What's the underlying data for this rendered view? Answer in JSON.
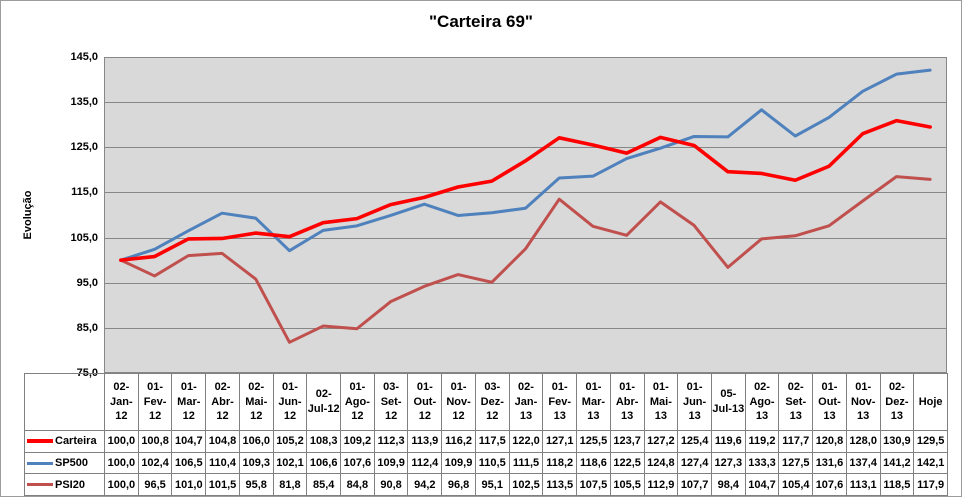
{
  "chart_data": {
    "type": "line",
    "title": "\"Carteira 69\"",
    "ylabel": "Evolução",
    "ylim": [
      75,
      145
    ],
    "ytick_step": 10,
    "decimal_separator": ",",
    "grid": "horizontal",
    "legend_position": "data-table-left",
    "categories": [
      "02-Jan-12",
      "01-Fev-12",
      "01-Mar-12",
      "02-Abr-12",
      "02-Mai-12",
      "01-Jun-12",
      "02-Jul-12",
      "01-Ago-12",
      "03-Set-12",
      "01-Out-12",
      "01-Nov-12",
      "03-Dez-12",
      "02-Jan-13",
      "01-Fev-13",
      "01-Mar-13",
      "01-Abr-13",
      "01-Mai-13",
      "01-Jun-13",
      "05-Jul-13",
      "02-Ago-13",
      "02-Set-13",
      "01-Out-13",
      "01-Nov-13",
      "02-Dez-13",
      "Hoje"
    ],
    "series": [
      {
        "name": "Carteira",
        "color": "#FF0000",
        "line_width": 3.6,
        "values": [
          100.0,
          100.8,
          104.7,
          104.8,
          106.0,
          105.2,
          108.3,
          109.2,
          112.3,
          113.9,
          116.2,
          117.5,
          122.0,
          127.1,
          125.5,
          123.7,
          127.2,
          125.4,
          119.6,
          119.2,
          117.7,
          120.8,
          128.0,
          130.9,
          129.5
        ]
      },
      {
        "name": "SP500",
        "color": "#4F81BD",
        "line_width": 3,
        "values": [
          100.0,
          102.4,
          106.5,
          110.4,
          109.3,
          102.1,
          106.6,
          107.6,
          109.9,
          112.4,
          109.9,
          110.5,
          111.5,
          118.2,
          118.6,
          122.5,
          124.8,
          127.4,
          127.3,
          133.3,
          127.5,
          131.6,
          137.4,
          141.2,
          142.1
        ]
      },
      {
        "name": "PSI20",
        "color": "#C0504D",
        "line_width": 3,
        "values": [
          100.0,
          96.5,
          101.0,
          101.5,
          95.8,
          81.8,
          85.4,
          84.8,
          90.8,
          94.2,
          96.8,
          95.1,
          102.5,
          113.5,
          107.5,
          105.5,
          112.9,
          107.7,
          98.4,
          104.7,
          105.4,
          107.6,
          113.1,
          118.5,
          117.9
        ]
      }
    ]
  },
  "colors": {
    "plot_bg": "#D9D9D9",
    "gridline": "#878787",
    "chart_border": "#9C9C9C",
    "table_border": "#808080",
    "text": "#000000",
    "background": "#FFFFFF"
  }
}
